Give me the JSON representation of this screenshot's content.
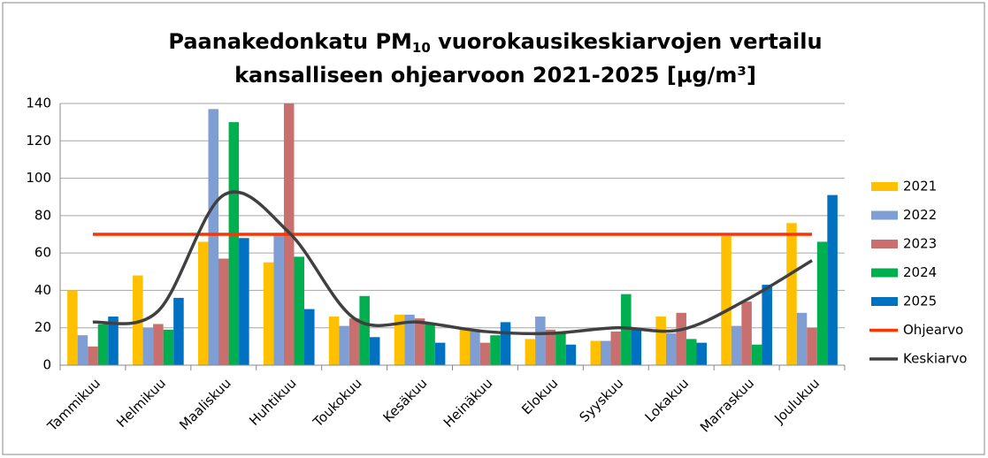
{
  "chart_data": {
    "type": "bar",
    "title": [
      "Paanakedonkatu PM",
      "10",
      " vuorokausikeskiarvojen vertailu",
      "kansalliseen ohjearvoon 2021-2025 [µg/m³]"
    ],
    "categories": [
      "Tammikuu",
      "Helmikuu",
      "Maaliskuu",
      "Huhtikuu",
      "Toukokuu",
      "Kesäkuu",
      "Heinäkuu",
      "Elokuu",
      "Syyskuu",
      "Lokakuu",
      "Marraskuu",
      "Joulukuu"
    ],
    "series": [
      {
        "name": "2021",
        "color": "#ffc000",
        "values": [
          40,
          48,
          66,
          55,
          26,
          27,
          19,
          14,
          13,
          26,
          69,
          76
        ]
      },
      {
        "name": "2022",
        "color": "#7f9fd4",
        "values": [
          16,
          20,
          137,
          70,
          21,
          27,
          18,
          26,
          13,
          17,
          21,
          28
        ]
      },
      {
        "name": "2023",
        "color": "#c9706e",
        "values": [
          10,
          22,
          57,
          140,
          25,
          25,
          12,
          19,
          18,
          28,
          34,
          20
        ]
      },
      {
        "name": "2024",
        "color": "#00b050",
        "values": [
          22,
          19,
          130,
          58,
          37,
          22,
          16,
          18,
          38,
          14,
          11,
          66
        ]
      },
      {
        "name": "2025",
        "color": "#0070c0",
        "values": [
          26,
          36,
          68,
          30,
          15,
          12,
          23,
          11,
          19,
          12,
          43,
          91
        ]
      },
      {
        "name": "Ohjearvo",
        "type": "line",
        "color": "#ff3300",
        "values": [
          70,
          70,
          70,
          70,
          70,
          70,
          70,
          70,
          70,
          70,
          70,
          70
        ]
      },
      {
        "name": "Keskiarvo",
        "type": "line",
        "smooth": true,
        "color": "#404040",
        "values": [
          23,
          29,
          91,
          71,
          25,
          23,
          18,
          17,
          20,
          19,
          35,
          56
        ]
      }
    ],
    "ylim": [
      0,
      140
    ],
    "yticks": [
      0,
      20,
      40,
      60,
      80,
      100,
      120,
      140
    ],
    "grid": true,
    "legend": "right"
  }
}
